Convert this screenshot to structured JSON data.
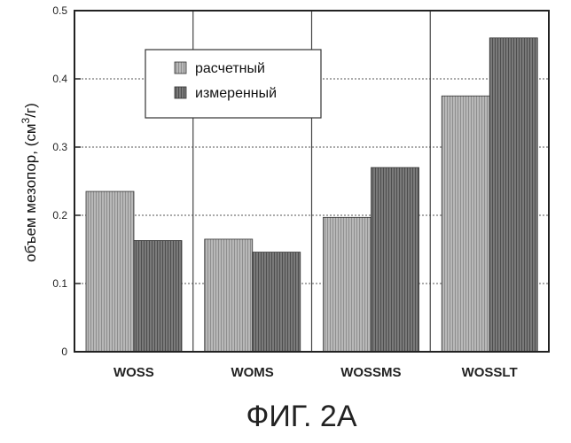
{
  "figure": {
    "caption": "ФИГ. 2А"
  },
  "chart_data": {
    "type": "bar",
    "categories": [
      "WOSS",
      "WOMS",
      "WOSSMS",
      "WOSSLT"
    ],
    "series": [
      {
        "name": "расчетный",
        "values": [
          0.235,
          0.165,
          0.197,
          0.375
        ]
      },
      {
        "name": "измеренный",
        "values": [
          0.163,
          0.146,
          0.27,
          0.46
        ]
      }
    ],
    "title": "",
    "xlabel": "",
    "ylabel_prefix": "объем мезопор, (см",
    "ylabel_sup": "3",
    "ylabel_suffix": "/г)",
    "ylim": [
      0,
      0.5
    ],
    "yticks": [
      "0",
      "0.1",
      "0.2",
      "0.3",
      "0.4",
      "0.5"
    ],
    "grid": true,
    "legend_position": "top-left-inside",
    "colors": {
      "series1": "#b3b3b3",
      "series2": "#6e6e6e",
      "grid": "#555555",
      "axis": "#222222"
    }
  }
}
